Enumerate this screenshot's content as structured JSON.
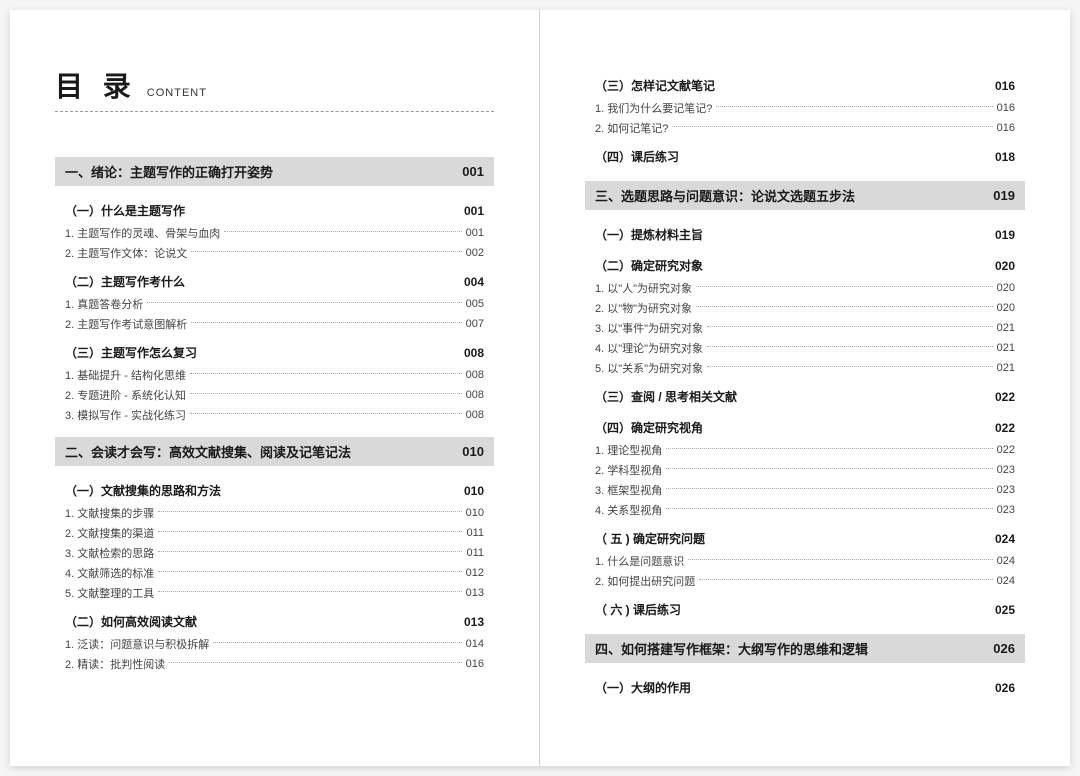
{
  "title": {
    "main": "目 录",
    "sub": "CONTENT"
  },
  "left": [
    {
      "type": "chapter",
      "label": "一、绪论：主题写作的正确打开姿势",
      "page": "001"
    },
    {
      "type": "section",
      "label": "（一）什么是主题写作",
      "page": "001"
    },
    {
      "type": "item",
      "label": "1. 主题写作的灵魂、骨架与血肉",
      "page": "001"
    },
    {
      "type": "item",
      "label": "2. 主题写作文体：论说文",
      "page": "002"
    },
    {
      "type": "section",
      "label": "（二）主题写作考什么",
      "page": "004"
    },
    {
      "type": "item",
      "label": "1. 真题答卷分析",
      "page": "005"
    },
    {
      "type": "item",
      "label": "2. 主题写作考试意图解析",
      "page": "007"
    },
    {
      "type": "section",
      "label": "（三）主题写作怎么复习",
      "page": "008"
    },
    {
      "type": "item",
      "label": "1. 基础提升 - 结构化思维",
      "page": "008"
    },
    {
      "type": "item",
      "label": "2. 专题进阶 - 系统化认知",
      "page": "008"
    },
    {
      "type": "item",
      "label": "3. 模拟写作 - 实战化练习",
      "page": "008"
    },
    {
      "type": "chapter",
      "label": "二、会读才会写：高效文献搜集、阅读及记笔记法",
      "page": "010"
    },
    {
      "type": "section",
      "label": "（一）文献搜集的思路和方法",
      "page": "010"
    },
    {
      "type": "item",
      "label": "1. 文献搜集的步骤",
      "page": "010"
    },
    {
      "type": "item",
      "label": "2. 文献搜集的渠道",
      "page": "011"
    },
    {
      "type": "item",
      "label": "3. 文献检索的思路",
      "page": "011"
    },
    {
      "type": "item",
      "label": "4. 文献筛选的标准",
      "page": "012"
    },
    {
      "type": "item",
      "label": "5. 文献整理的工具",
      "page": "013"
    },
    {
      "type": "section",
      "label": "（二）如何高效阅读文献",
      "page": "013"
    },
    {
      "type": "item",
      "label": "1. 泛读：问题意识与积极拆解",
      "page": "014"
    },
    {
      "type": "item",
      "label": "2. 精读：批判性阅读",
      "page": "016"
    }
  ],
  "right": [
    {
      "type": "section",
      "label": "（三）怎样记文献笔记",
      "page": "016"
    },
    {
      "type": "item",
      "label": "1. 我们为什么要记笔记?",
      "page": "016"
    },
    {
      "type": "item",
      "label": "2. 如何记笔记?",
      "page": "016"
    },
    {
      "type": "section",
      "label": "（四）课后练习",
      "page": "018"
    },
    {
      "type": "chapter",
      "label": "三、选题思路与问题意识：论说文选题五步法",
      "page": "019"
    },
    {
      "type": "section",
      "label": "（一）提炼材料主旨",
      "page": "019"
    },
    {
      "type": "section",
      "label": "（二）确定研究对象",
      "page": "020"
    },
    {
      "type": "item",
      "label": "1. 以\"人\"为研究对象",
      "page": "020"
    },
    {
      "type": "item",
      "label": "2. 以\"物\"为研究对象",
      "page": "020"
    },
    {
      "type": "item",
      "label": "3. 以\"事件\"为研究对象",
      "page": "021"
    },
    {
      "type": "item",
      "label": "4. 以\"理论\"为研究对象",
      "page": "021"
    },
    {
      "type": "item",
      "label": "5. 以\"关系\"为研究对象",
      "page": "021"
    },
    {
      "type": "section",
      "label": "（三）查阅 / 思考相关文献",
      "page": "022"
    },
    {
      "type": "section",
      "label": "（四）确定研究视角",
      "page": "022"
    },
    {
      "type": "item",
      "label": "1. 理论型视角",
      "page": "022"
    },
    {
      "type": "item",
      "label": "2. 学科型视角",
      "page": "023"
    },
    {
      "type": "item",
      "label": "3. 框架型视角",
      "page": "023"
    },
    {
      "type": "item",
      "label": "4. 关系型视角",
      "page": "023"
    },
    {
      "type": "section",
      "label": "（ 五 ) 确定研究问题",
      "page": "024"
    },
    {
      "type": "item",
      "label": "1. 什么是问题意识",
      "page": "024"
    },
    {
      "type": "item",
      "label": "2. 如何提出研究问题",
      "page": "024"
    },
    {
      "type": "section",
      "label": "（ 六 ) 课后练习",
      "page": "025"
    },
    {
      "type": "chapter",
      "label": "四、如何搭建写作框架：大纲写作的思维和逻辑",
      "page": "026"
    },
    {
      "type": "section",
      "label": "（一）大纲的作用",
      "page": "026"
    }
  ],
  "styles": {
    "background": "#ffffff",
    "chapter_bg": "#d9d9d9",
    "text_color": "#1a1a1a",
    "item_color": "#444444",
    "dot_color": "#aaaaaa",
    "title_fontsize": 28,
    "chapter_fontsize": 13,
    "section_fontsize": 12,
    "item_fontsize": 11
  }
}
